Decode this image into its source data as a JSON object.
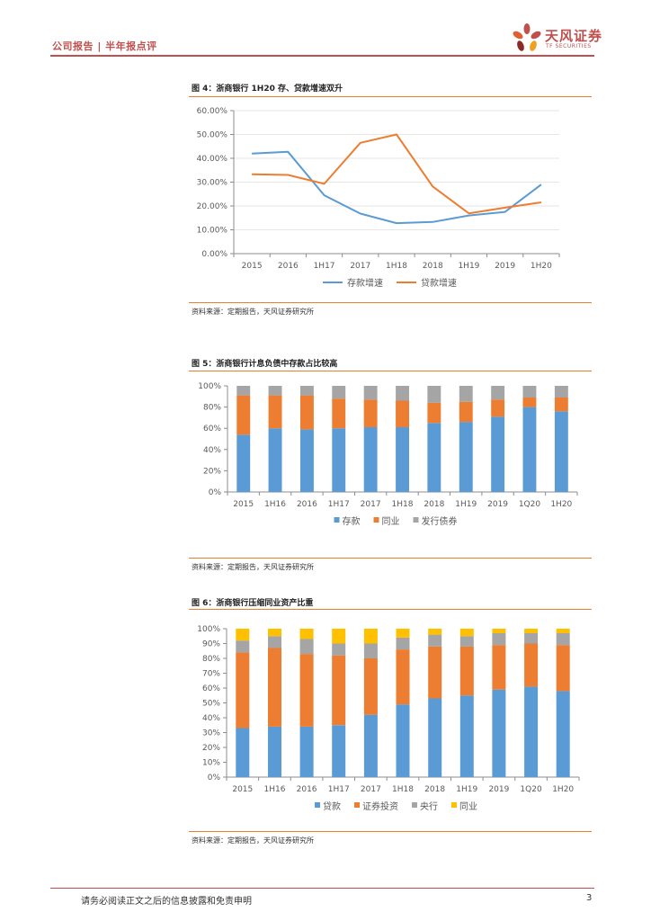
{
  "header": {
    "left": "公司报告 | 半年报点评",
    "logo_cn": "天风证券",
    "logo_en": "TF SECURITIES"
  },
  "colors": {
    "blue": "#5b9bd5",
    "orange": "#ed7d31",
    "gray": "#a5a5a5",
    "yellow": "#ffc000",
    "brand": "#c0504d"
  },
  "source_text": "资料来源：定期报告，天风证券研究所",
  "chart_data": [
    {
      "id": "fig4",
      "type": "line",
      "title": "图 4：浙商银行 1H20 存、贷款增速双升",
      "categories": [
        "2015",
        "2016",
        "1H17",
        "2017",
        "1H18",
        "2018",
        "1H19",
        "2019",
        "1H20"
      ],
      "y_ticks": [
        "0.00%",
        "10.00%",
        "20.00%",
        "30.00%",
        "40.00%",
        "50.00%",
        "60.00%"
      ],
      "ylim": [
        0,
        60
      ],
      "series": [
        {
          "name": "存款增速",
          "color": "#5b9bd5",
          "values": [
            42.0,
            42.7,
            24.5,
            16.8,
            12.8,
            13.3,
            16.0,
            17.5,
            29.0
          ]
        },
        {
          "name": "贷款增速",
          "color": "#ed7d31",
          "values": [
            33.3,
            33.0,
            29.3,
            46.5,
            50.0,
            28.2,
            16.9,
            19.3,
            21.5
          ]
        }
      ]
    },
    {
      "id": "fig5",
      "type": "bar",
      "stacked": true,
      "title": "图 5：浙商银行计息负债中存款占比较高",
      "categories": [
        "2015",
        "1H16",
        "2016",
        "1H17",
        "2017",
        "1H18",
        "2018",
        "1H19",
        "2019",
        "1Q20",
        "1H20"
      ],
      "y_ticks": [
        "0%",
        "20%",
        "40%",
        "60%",
        "80%",
        "100%"
      ],
      "ylim": [
        0,
        100
      ],
      "series": [
        {
          "name": "存款",
          "color": "#5b9bd5",
          "values": [
            54,
            60,
            59,
            60,
            61,
            61,
            65,
            66,
            71,
            80,
            76
          ]
        },
        {
          "name": "同业",
          "color": "#ed7d31",
          "values": [
            37,
            31,
            32,
            28,
            26,
            25,
            19,
            19,
            16,
            9,
            13
          ]
        },
        {
          "name": "发行债券",
          "color": "#a5a5a5",
          "values": [
            9,
            9,
            9,
            12,
            13,
            14,
            16,
            15,
            13,
            11,
            11
          ]
        }
      ]
    },
    {
      "id": "fig6",
      "type": "bar",
      "stacked": true,
      "title": "图 6：浙商银行压缩同业资产比重",
      "categories": [
        "2015",
        "1H16",
        "2016",
        "1H17",
        "2017",
        "1H18",
        "2018",
        "1H19",
        "2019",
        "1Q20",
        "1H20"
      ],
      "y_ticks": [
        "0%",
        "10%",
        "20%",
        "30%",
        "40%",
        "50%",
        "60%",
        "70%",
        "80%",
        "90%",
        "100%"
      ],
      "ylim": [
        0,
        100
      ],
      "series": [
        {
          "name": "贷款",
          "color": "#5b9bd5",
          "values": [
            33,
            34,
            34,
            35,
            42,
            49,
            53,
            55,
            59,
            61,
            58
          ]
        },
        {
          "name": "证券投资",
          "color": "#ed7d31",
          "values": [
            51,
            53,
            49,
            47,
            38,
            37,
            35,
            33,
            30,
            29,
            31
          ]
        },
        {
          "name": "央行",
          "color": "#a5a5a5",
          "values": [
            8,
            8,
            10,
            8,
            10,
            8,
            8,
            7,
            8,
            7,
            8
          ]
        },
        {
          "name": "同业",
          "color": "#ffc000",
          "values": [
            8,
            5,
            7,
            10,
            10,
            6,
            4,
            5,
            3,
            3,
            3
          ]
        }
      ]
    }
  ],
  "footer": {
    "disclaimer": "请务必阅读正文之后的信息披露和免责申明",
    "page": "3"
  }
}
